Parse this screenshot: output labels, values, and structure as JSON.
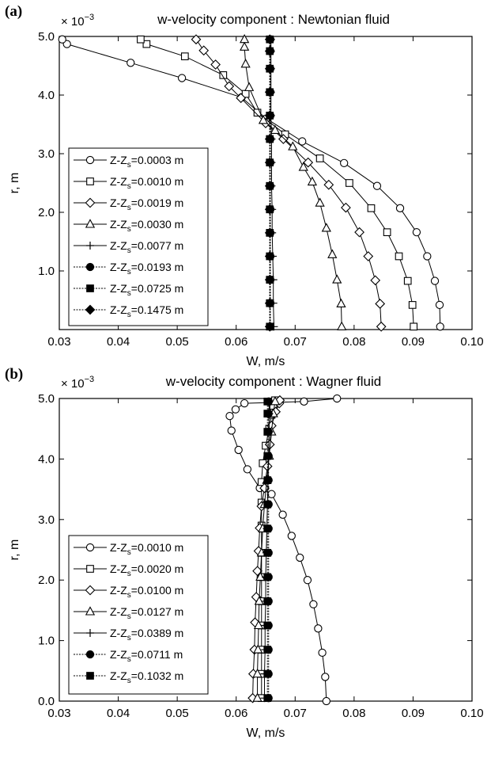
{
  "charts": [
    {
      "panel_label": "(a)",
      "chart_data": {
        "type": "line",
        "title": "w-velocity component : Newtonian fluid",
        "xlabel": "W, m/s",
        "ylabel": "r, m",
        "y_multiplier": "× 10",
        "y_multiplier_exp": "−3",
        "xlim": [
          0.03,
          0.1
        ],
        "ylim": [
          0,
          5.0
        ],
        "xticks": [
          "0.03",
          "0.04",
          "0.05",
          "0.06",
          "0.07",
          "0.08",
          "0.09",
          "0.10"
        ],
        "yticks": [
          "1.0",
          "2.0",
          "3.0",
          "4.0",
          "5.0"
        ],
        "legend_position": "bottom-left",
        "grid": false,
        "series": [
          {
            "legend_prefix": "Z-Z",
            "legend_sub": "s",
            "legend_value": "=0.0003 m",
            "marker": "circle-open",
            "x": [
              0.0946,
              0.0945,
              0.0937,
              0.0924,
              0.0906,
              0.0878,
              0.0839,
              0.0783,
              0.0712,
              0.0651,
              0.0609,
              0.0508,
              0.0421,
              0.0313,
              0.0305
            ],
            "y": [
              0.05,
              0.42,
              0.83,
              1.25,
              1.66,
              2.07,
              2.45,
              2.84,
              3.21,
              3.6,
              3.96,
              4.29,
              4.55,
              4.87,
              4.95
            ]
          },
          {
            "legend_prefix": "Z-Z",
            "legend_sub": "s",
            "legend_value": "=0.0010 m",
            "marker": "square-open",
            "x": [
              0.0901,
              0.0899,
              0.0891,
              0.0876,
              0.0856,
              0.0829,
              0.0792,
              0.0742,
              0.0683,
              0.0636,
              0.0616,
              0.0578,
              0.0513,
              0.0448,
              0.0438
            ],
            "y": [
              0.05,
              0.42,
              0.83,
              1.25,
              1.66,
              2.07,
              2.5,
              2.92,
              3.33,
              3.7,
              4.02,
              4.34,
              4.66,
              4.87,
              4.95
            ]
          },
          {
            "legend_prefix": "Z-Z",
            "legend_sub": "s",
            "legend_value": "=0.0019 m",
            "marker": "diamond-open",
            "x": [
              0.0846,
              0.0844,
              0.0836,
              0.0824,
              0.0809,
              0.0786,
              0.0757,
              0.0722,
              0.068,
              0.065,
              0.0608,
              0.0588,
              0.0565,
              0.0545,
              0.0532
            ],
            "y": [
              0.05,
              0.44,
              0.84,
              1.25,
              1.66,
              2.08,
              2.47,
              2.85,
              3.25,
              3.52,
              3.95,
              4.15,
              4.52,
              4.76,
              4.95
            ]
          },
          {
            "legend_prefix": "Z-Z",
            "legend_sub": "s",
            "legend_value": "=0.0030 m",
            "marker": "triangle-open",
            "x": [
              0.0779,
              0.0778,
              0.0771,
              0.0763,
              0.0753,
              0.0742,
              0.0729,
              0.0714,
              0.0696,
              0.0666,
              0.0646,
              0.0622,
              0.0616,
              0.0614,
              0.0614
            ],
            "y": [
              0.05,
              0.44,
              0.85,
              1.28,
              1.73,
              2.16,
              2.52,
              2.77,
              3.12,
              3.4,
              3.57,
              4.13,
              4.53,
              4.82,
              4.95
            ]
          },
          {
            "legend_prefix": "Z-Z",
            "legend_sub": "s",
            "legend_value": "=0.0077 m",
            "marker": "plus",
            "x": [
              0.0664,
              0.0663,
              0.0663,
              0.0662,
              0.0661,
              0.0661,
              0.066,
              0.066,
              0.066,
              0.0659,
              0.0659,
              0.0659,
              0.0659,
              0.0659
            ],
            "y": [
              0.05,
              0.45,
              0.85,
              1.25,
              1.65,
              2.05,
              2.45,
              2.85,
              3.25,
              3.65,
              4.05,
              4.45,
              4.75,
              4.95
            ]
          },
          {
            "legend_prefix": "Z-Z",
            "legend_sub": "s",
            "legend_value": "=0.0193 m",
            "marker": "circle-filled",
            "x": [
              0.0658,
              0.0658,
              0.0658,
              0.0658,
              0.0658,
              0.0658,
              0.0658,
              0.0658,
              0.0658,
              0.0658,
              0.0658,
              0.0658,
              0.0658,
              0.0658
            ],
            "y": [
              0.05,
              0.45,
              0.85,
              1.25,
              1.65,
              2.05,
              2.45,
              2.85,
              3.25,
              3.65,
              4.05,
              4.45,
              4.75,
              4.95
            ]
          },
          {
            "legend_prefix": "Z-Z",
            "legend_sub": "s",
            "legend_value": "=0.0725 m",
            "marker": "square-filled",
            "x": [
              0.0657,
              0.0657,
              0.0657,
              0.0657,
              0.0657,
              0.0657,
              0.0657,
              0.0657,
              0.0657,
              0.0657,
              0.0657,
              0.0657,
              0.0657,
              0.0657
            ],
            "y": [
              0.05,
              0.45,
              0.85,
              1.25,
              1.65,
              2.05,
              2.45,
              2.85,
              3.25,
              3.65,
              4.05,
              4.45,
              4.75,
              4.95
            ]
          },
          {
            "legend_prefix": "Z-Z",
            "legend_sub": "s",
            "legend_value": "=0.1475 m",
            "marker": "diamond-filled",
            "x": [
              0.0657,
              0.0657,
              0.0657,
              0.0657,
              0.0657,
              0.0657,
              0.0657,
              0.0657,
              0.0657,
              0.0657,
              0.0657,
              0.0657,
              0.0657,
              0.0657
            ],
            "y": [
              0.05,
              0.45,
              0.85,
              1.25,
              1.65,
              2.05,
              2.45,
              2.85,
              3.25,
              3.65,
              4.05,
              4.45,
              4.75,
              4.95
            ]
          }
        ]
      }
    },
    {
      "panel_label": "(b)",
      "chart_data": {
        "type": "line",
        "title": "w-velocity component : Wagner fluid",
        "xlabel": "W, m/s",
        "ylabel": "r, m",
        "y_multiplier": "× 10",
        "y_multiplier_exp": "−3",
        "xlim": [
          0.03,
          0.1
        ],
        "ylim": [
          0,
          5.0
        ],
        "xticks": [
          "0.03",
          "0.04",
          "0.05",
          "0.06",
          "0.07",
          "0.08",
          "0.09",
          "0.10"
        ],
        "yticks": [
          "0.0",
          "1.0",
          "2.0",
          "3.0",
          "4.0",
          "5.0"
        ],
        "legend_position": "bottom-left",
        "grid": false,
        "series": [
          {
            "legend_prefix": "Z-Z",
            "legend_sub": "s",
            "legend_value": "=0.0010 m",
            "marker": "circle-open",
            "x": [
              0.0753,
              0.0751,
              0.0746,
              0.0739,
              0.0731,
              0.0721,
              0.0708,
              0.0694,
              0.0679,
              0.066,
              0.064,
              0.0619,
              0.0604,
              0.0592,
              0.0589,
              0.0599,
              0.0614,
              0.0715,
              0.0771
            ],
            "y": [
              0.0,
              0.4,
              0.8,
              1.2,
              1.6,
              2.0,
              2.37,
              2.73,
              3.08,
              3.42,
              3.52,
              3.83,
              4.15,
              4.47,
              4.71,
              4.82,
              4.92,
              4.95,
              5.0
            ]
          },
          {
            "legend_prefix": "Z-Z",
            "legend_sub": "s",
            "legend_value": "=0.0020 m",
            "marker": "square-open",
            "x": [
              0.0643,
              0.0643,
              0.0643,
              0.0643,
              0.0643,
              0.0643,
              0.0643,
              0.0643,
              0.0643,
              0.0643,
              0.0645,
              0.065,
              0.0656,
              0.066,
              0.0663,
              0.0666
            ],
            "y": [
              0.05,
              0.45,
              0.85,
              1.25,
              1.65,
              2.05,
              2.45,
              2.9,
              3.28,
              3.62,
              3.93,
              4.22,
              4.5,
              4.73,
              4.88,
              4.97
            ]
          },
          {
            "legend_prefix": "Z-Z",
            "legend_sub": "s",
            "legend_value": "=0.0100 m",
            "marker": "diamond-open",
            "x": [
              0.0628,
              0.0629,
              0.0631,
              0.0632,
              0.0634,
              0.0636,
              0.0638,
              0.064,
              0.0643,
              0.0648,
              0.0653,
              0.0657,
              0.066,
              0.0667,
              0.0673,
              0.0674
            ],
            "y": [
              0.05,
              0.45,
              0.85,
              1.3,
              1.72,
              2.15,
              2.48,
              2.86,
              3.22,
              3.52,
              3.88,
              4.24,
              4.55,
              4.78,
              4.92,
              4.97
            ]
          },
          {
            "legend_prefix": "Z-Z",
            "legend_sub": "s",
            "legend_value": "=0.0127 m",
            "marker": "triangle-open",
            "x": [
              0.0636,
              0.0636,
              0.0637,
              0.0638,
              0.0639,
              0.0641,
              0.0643,
              0.0645,
              0.0648,
              0.0652,
              0.0656,
              0.066,
              0.0663,
              0.0666
            ],
            "y": [
              0.05,
              0.45,
              0.85,
              1.25,
              1.65,
              2.05,
              2.45,
              2.85,
              3.25,
              3.65,
              4.05,
              4.45,
              4.75,
              4.95
            ]
          },
          {
            "legend_prefix": "Z-Z",
            "legend_sub": "s",
            "legend_value": "=0.0389 m",
            "marker": "plus",
            "x": [
              0.0648,
              0.0648,
              0.0649,
              0.0649,
              0.065,
              0.065,
              0.0651,
              0.0652,
              0.0653,
              0.0654,
              0.0655,
              0.0656,
              0.0656,
              0.0656
            ],
            "y": [
              0.05,
              0.45,
              0.85,
              1.25,
              1.65,
              2.05,
              2.45,
              2.85,
              3.25,
              3.65,
              4.05,
              4.45,
              4.75,
              4.95
            ]
          },
          {
            "legend_prefix": "Z-Z",
            "legend_sub": "s",
            "legend_value": "=0.0711 m",
            "marker": "circle-filled",
            "x": [
              0.0655,
              0.0655,
              0.0655,
              0.0655,
              0.0655,
              0.0655,
              0.0655,
              0.0655,
              0.0655,
              0.0655,
              0.0655,
              0.0655,
              0.0655,
              0.0655
            ],
            "y": [
              0.05,
              0.45,
              0.85,
              1.25,
              1.65,
              2.05,
              2.45,
              2.85,
              3.25,
              3.65,
              4.05,
              4.45,
              4.75,
              4.95
            ]
          },
          {
            "legend_prefix": "Z-Z",
            "legend_sub": "s",
            "legend_value": "=0.1032 m",
            "marker": "square-filled",
            "x": [
              0.0653,
              0.0653,
              0.0653,
              0.0653,
              0.0653,
              0.0653,
              0.0653,
              0.0653,
              0.0653,
              0.0653,
              0.0653,
              0.0653,
              0.0653,
              0.0653
            ],
            "y": [
              0.05,
              0.45,
              0.85,
              1.25,
              1.65,
              2.05,
              2.45,
              2.85,
              3.25,
              3.65,
              4.05,
              4.45,
              4.75,
              4.95
            ]
          }
        ]
      }
    }
  ]
}
